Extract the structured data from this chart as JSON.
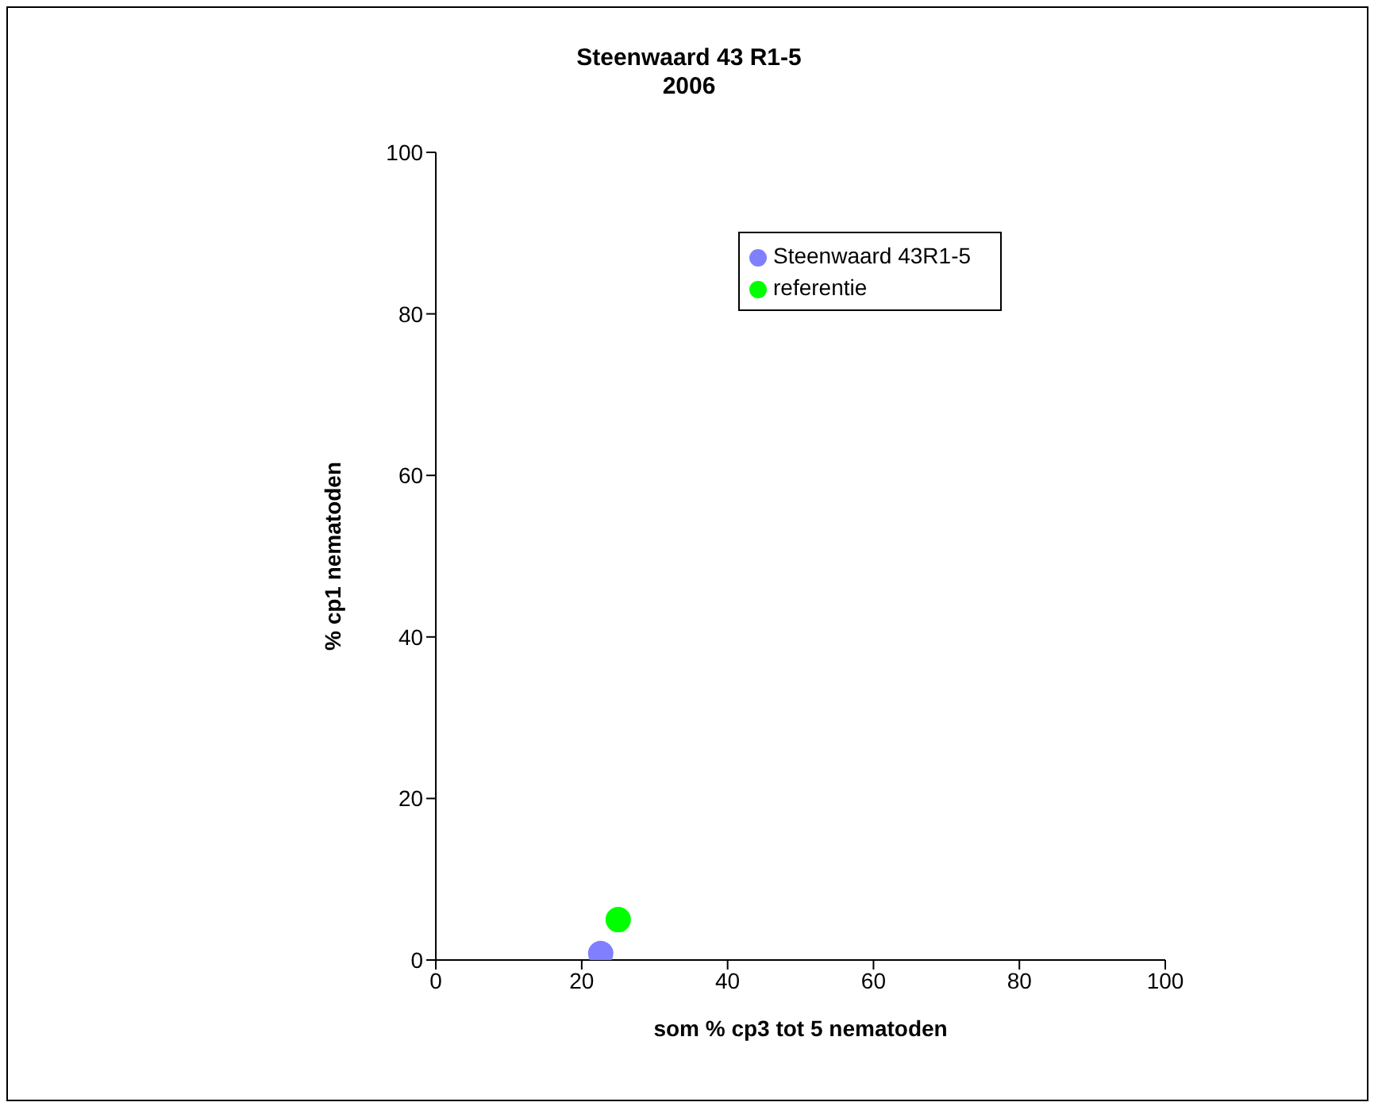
{
  "chart_data": {
    "type": "scatter",
    "title": "Steenwaard 43 R1-5",
    "subtitle": "2006",
    "xlabel": "som % cp3 tot 5 nematoden",
    "ylabel": "% cp1 nematoden",
    "series": [
      {
        "name": "referentie",
        "color": "#00ff00",
        "x": [
          25
        ],
        "values": [
          5
        ]
      },
      {
        "name": "Steenwaard 43R1-5",
        "color": "#8080ff",
        "x": [
          22.6
        ],
        "values": [
          0.8
        ]
      }
    ],
    "xlim": [
      0,
      100
    ],
    "xticks": [
      0,
      20,
      40,
      60,
      80,
      100
    ],
    "ylim": [
      0,
      100
    ],
    "yticks": [
      0,
      20,
      40,
      60,
      80,
      100
    ],
    "grid": false,
    "legend": "top right",
    "marker": "circle"
  }
}
